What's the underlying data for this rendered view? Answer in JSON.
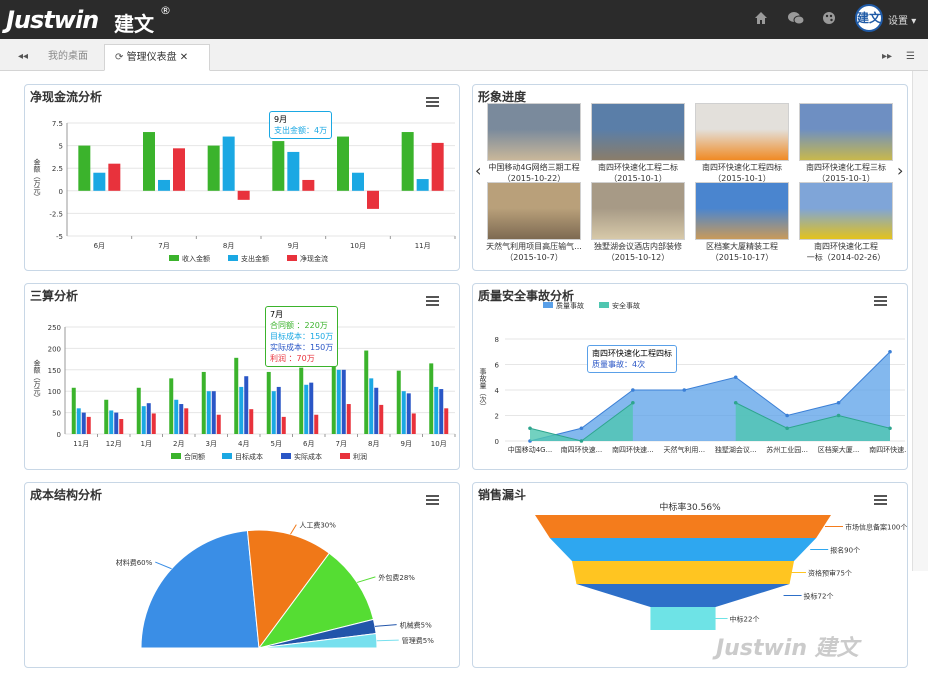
{
  "topbar": {
    "logo": "Justwin",
    "logo_cn": "建文",
    "reg": "®",
    "avatar_text": "建文",
    "settings": "设置"
  },
  "tabs": [
    {
      "label": "我的桌面"
    },
    {
      "label": "管理仪表盘"
    }
  ],
  "panels": {
    "cashflow": {
      "title": "净现金流分析",
      "tooltip_title": "9月",
      "tooltip_line": "支出金额：4万"
    },
    "progress": {
      "title": "形象进度",
      "items": [
        {
          "name": "中国移动4G网络三期工程",
          "date": "（2015-10-22）"
        },
        {
          "name": "南四环快速化工程二标",
          "date": "（2015-10-1）"
        },
        {
          "name": "南四环快速化工程四标",
          "date": "（2015-10-1）"
        },
        {
          "name": "南四环快速化工程三标",
          "date": "（2015-10-1）"
        },
        {
          "name": "天然气利用项目高压输气...",
          "date": "（2015-10-7）"
        },
        {
          "name": "独墅湖会议酒店内部装修",
          "date": "（2015-10-12）"
        },
        {
          "name": "区档案大厦精装工程",
          "date": "（2015-10-17）"
        },
        {
          "name": "南四环快速化工程",
          "date": "一标（2014-02-26）"
        }
      ]
    },
    "threecalc": {
      "title": "三算分析",
      "tooltip_title": "7月",
      "tooltip_lines": [
        "合同额 ：220万",
        "目标成本：150万",
        "实际成本：150万",
        "利润 ：70万"
      ]
    },
    "quality": {
      "title": "质量安全事故分析",
      "tooltip_title": "南四环快速化工程四标",
      "tooltip_line": "质量事故：4次"
    },
    "coststruct": {
      "title": "成本结构分析"
    },
    "funnel": {
      "title": "销售漏斗",
      "subtitle": "中标率30.56%"
    }
  },
  "chart_data": [
    {
      "type": "bar",
      "title": "净现金流分析",
      "ylabel": "金额（万元）",
      "categories": [
        "6月",
        "7月",
        "8月",
        "9月",
        "10月",
        "11月"
      ],
      "ylim": [
        -5,
        7.5
      ],
      "yticks": [
        "7.5",
        "5",
        "2.5",
        "0",
        "-2.5",
        "-5"
      ],
      "series": [
        {
          "name": "收入金额",
          "color": "#3bb32c",
          "values": [
            5,
            6.5,
            5,
            5.5,
            6,
            6.5
          ]
        },
        {
          "name": "支出金额",
          "color": "#1ba8e3",
          "values": [
            2,
            1.2,
            6,
            4.3,
            2,
            1.3
          ]
        },
        {
          "name": "净现金流",
          "color": "#e8323c",
          "values": [
            3,
            4.7,
            -1,
            1.2,
            -2,
            5.3
          ]
        }
      ]
    },
    {
      "type": "bar",
      "title": "三算分析",
      "ylabel": "金额（万元）",
      "categories": [
        "11月",
        "12月",
        "1月",
        "2月",
        "3月",
        "4月",
        "5月",
        "6月",
        "7月",
        "8月",
        "9月",
        "10月"
      ],
      "ylim": [
        0,
        250
      ],
      "yticks": [
        "250",
        "200",
        "150",
        "100",
        "50",
        "0"
      ],
      "series": [
        {
          "name": "合同额",
          "color": "#3bb32c",
          "values": [
            108,
            80,
            108,
            130,
            145,
            178,
            145,
            155,
            220,
            195,
            148,
            165
          ]
        },
        {
          "name": "目标成本",
          "color": "#1ba8e3",
          "values": [
            60,
            55,
            65,
            80,
            100,
            110,
            100,
            115,
            150,
            130,
            100,
            110
          ]
        },
        {
          "name": "实际成本",
          "color": "#2a56c6",
          "values": [
            50,
            50,
            72,
            70,
            100,
            135,
            110,
            120,
            150,
            108,
            95,
            105
          ]
        },
        {
          "name": "利润",
          "color": "#e8323c",
          "values": [
            40,
            35,
            48,
            60,
            45,
            58,
            40,
            45,
            70,
            68,
            48,
            60
          ]
        }
      ]
    },
    {
      "type": "area",
      "title": "质量安全事故分析",
      "ylabel": "事故量（次）",
      "categories": [
        "中国移动4G...",
        "南四环快速...",
        "南四环快速...",
        "天然气利用...",
        "独墅湖会议...",
        "苏州工业园...",
        "区档案大厦...",
        "南四环快速..."
      ],
      "ylim": [
        0,
        8
      ],
      "yticks": [
        "8",
        "6",
        "4",
        "2",
        "0"
      ],
      "series": [
        {
          "name": "质量事故",
          "color": "#5aa0e8",
          "values": [
            0,
            1,
            4,
            4,
            5,
            2,
            3,
            7
          ]
        },
        {
          "name": "安全事故",
          "color": "#4fc6b0",
          "values": [
            1,
            0,
            3,
            null,
            3,
            1,
            2,
            1
          ]
        }
      ]
    },
    {
      "type": "pie",
      "title": "成本结构分析",
      "slices": [
        {
          "label": "材料费60%",
          "value": 60,
          "color": "#3a8ee6"
        },
        {
          "label": "人工费30%",
          "value": 30,
          "color": "#f07818"
        },
        {
          "label": "外包费28%",
          "value": 28,
          "color": "#55dd33"
        },
        {
          "label": "机械费5%",
          "value": 5,
          "color": "#2255aa"
        },
        {
          "label": "管理费5%",
          "value": 5,
          "color": "#77e0ee"
        }
      ]
    },
    {
      "type": "funnel",
      "title": "销售漏斗",
      "stages": [
        {
          "label": "市场信息备案100个",
          "value": 100,
          "color": "#f47c1c"
        },
        {
          "label": "报名90个",
          "value": 90,
          "color": "#2ea7f0"
        },
        {
          "label": "资格预审75个",
          "value": 75,
          "color": "#ffc521"
        },
        {
          "label": "投标72个",
          "value": 72,
          "color": "#2d6fc8"
        },
        {
          "label": "中标22个",
          "value": 22,
          "color": "#6ee3e6"
        }
      ]
    }
  ],
  "watermark": "Justwin 建文"
}
